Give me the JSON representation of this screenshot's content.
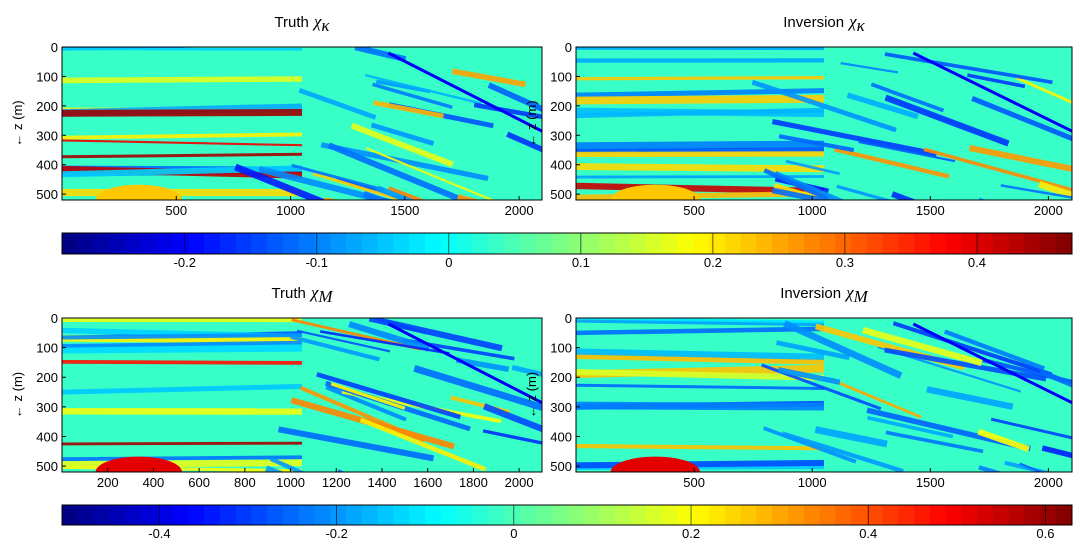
{
  "chart_data": [
    {
      "type": "heatmap",
      "title": "Truth",
      "symbol": "χ",
      "subscript": "κ",
      "ylabel": "← z (m)",
      "xlim": [
        0,
        2100
      ],
      "ylim": [
        0,
        520
      ],
      "y_reversed": true,
      "xticks": [
        500,
        1000,
        1500,
        2000
      ],
      "yticks": [
        0,
        100,
        200,
        300,
        400,
        500
      ]
    },
    {
      "type": "heatmap",
      "title": "Inversion",
      "symbol": "χ",
      "subscript": "κ",
      "ylabel": "← z (m)",
      "xlim": [
        0,
        2100
      ],
      "ylim": [
        0,
        520
      ],
      "y_reversed": true,
      "xticks": [
        500,
        1000,
        1500,
        2000
      ],
      "yticks": [
        0,
        100,
        200,
        300,
        400,
        500
      ]
    },
    {
      "type": "colorbar",
      "colormap": "jet",
      "clim": [
        -0.293,
        0.472
      ],
      "ticks": [
        -0.2,
        -0.1,
        0,
        0.1,
        0.2,
        0.3,
        0.4
      ]
    },
    {
      "type": "heatmap",
      "title": "Truth",
      "symbol": "χ",
      "subscript": "M",
      "ylabel": "← z (m)",
      "xlim": [
        0,
        2100
      ],
      "ylim": [
        0,
        520
      ],
      "y_reversed": true,
      "xticks": [
        200,
        400,
        600,
        800,
        1000,
        1200,
        1400,
        1600,
        1800,
        2000
      ],
      "yticks": [
        0,
        100,
        200,
        300,
        400,
        500
      ]
    },
    {
      "type": "heatmap",
      "title": "Inversion",
      "symbol": "χ",
      "subscript": "M",
      "ylabel": "← z (m)",
      "xlim": [
        0,
        2100
      ],
      "ylim": [
        0,
        520
      ],
      "y_reversed": true,
      "xticks": [
        500,
        1000,
        1500,
        2000
      ],
      "yticks": [
        0,
        100,
        200,
        300,
        400,
        500
      ]
    },
    {
      "type": "colorbar",
      "colormap": "jet",
      "clim": [
        -0.51,
        0.63
      ],
      "ticks": [
        -0.4,
        -0.2,
        0,
        0.2,
        0.4,
        0.6
      ]
    }
  ]
}
